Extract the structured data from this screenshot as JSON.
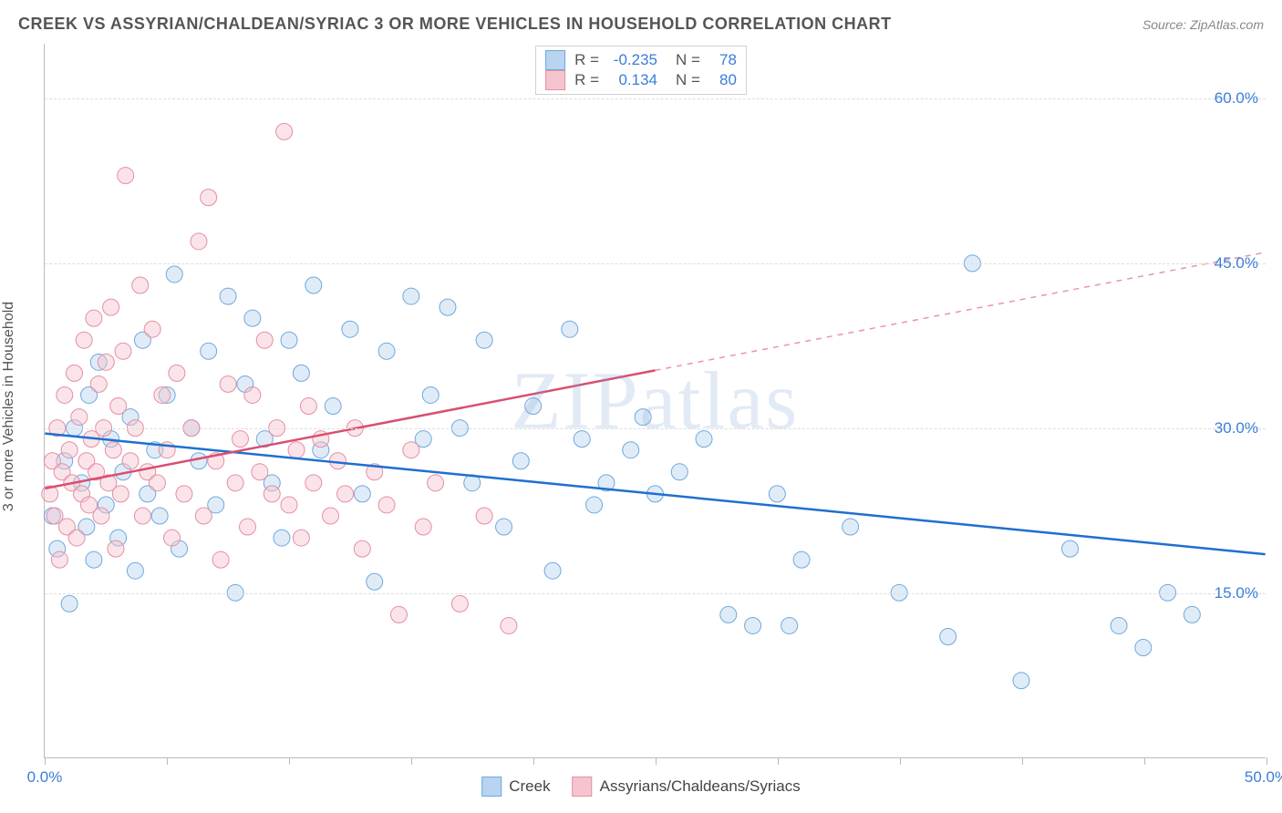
{
  "title": "CREEK VS ASSYRIAN/CHALDEAN/SYRIAC 3 OR MORE VEHICLES IN HOUSEHOLD CORRELATION CHART",
  "source": "Source: ZipAtlas.com",
  "ylabel": "3 or more Vehicles in Household",
  "watermark": "ZIPatlas",
  "chart": {
    "type": "scatter-with-regression",
    "background_color": "#ffffff",
    "grid_color": "#dddddd",
    "border_color": "#bbbbbb",
    "xlim": [
      0,
      50
    ],
    "ylim": [
      0,
      65
    ],
    "y_ticks": [
      15,
      30,
      45,
      60
    ],
    "y_tick_labels": [
      "15.0%",
      "30.0%",
      "45.0%",
      "60.0%"
    ],
    "x_ticks": [
      0,
      5,
      10,
      15,
      20,
      25,
      30,
      35,
      40,
      45,
      50
    ],
    "x_tick_labels": {
      "0": "0.0%",
      "50": "50.0%"
    },
    "y_label_color": "#3b7dd8",
    "x_label_color": "#3b7dd8",
    "marker_radius": 9,
    "marker_opacity": 0.45,
    "regression_line_width": 2.5,
    "series": [
      {
        "name": "Creek",
        "color_fill": "#b8d4f0",
        "color_stroke": "#6fa8dc",
        "line_color": "#1f6fd0",
        "R": -0.235,
        "N": 78,
        "regression": {
          "x1": 0,
          "y1": 29.5,
          "x2": 50,
          "y2": 18.5,
          "dashed_from_x": null
        },
        "points": [
          [
            0.3,
            22
          ],
          [
            0.5,
            19
          ],
          [
            0.8,
            27
          ],
          [
            1.0,
            14
          ],
          [
            1.2,
            30
          ],
          [
            1.5,
            25
          ],
          [
            1.7,
            21
          ],
          [
            1.8,
            33
          ],
          [
            2.0,
            18
          ],
          [
            2.2,
            36
          ],
          [
            2.5,
            23
          ],
          [
            2.7,
            29
          ],
          [
            3.0,
            20
          ],
          [
            3.2,
            26
          ],
          [
            3.5,
            31
          ],
          [
            3.7,
            17
          ],
          [
            4.0,
            38
          ],
          [
            4.2,
            24
          ],
          [
            4.5,
            28
          ],
          [
            4.7,
            22
          ],
          [
            5.0,
            33
          ],
          [
            5.3,
            44
          ],
          [
            5.5,
            19
          ],
          [
            6.0,
            30
          ],
          [
            6.3,
            27
          ],
          [
            6.7,
            37
          ],
          [
            7.0,
            23
          ],
          [
            7.5,
            42
          ],
          [
            7.8,
            15
          ],
          [
            8.2,
            34
          ],
          [
            8.5,
            40
          ],
          [
            9.0,
            29
          ],
          [
            9.3,
            25
          ],
          [
            9.7,
            20
          ],
          [
            10.0,
            38
          ],
          [
            10.5,
            35
          ],
          [
            11.0,
            43
          ],
          [
            11.3,
            28
          ],
          [
            11.8,
            32
          ],
          [
            12.5,
            39
          ],
          [
            13.0,
            24
          ],
          [
            13.5,
            16
          ],
          [
            14.0,
            37
          ],
          [
            15.0,
            42
          ],
          [
            15.5,
            29
          ],
          [
            15.8,
            33
          ],
          [
            16.5,
            41
          ],
          [
            17.0,
            30
          ],
          [
            17.5,
            25
          ],
          [
            18.0,
            38
          ],
          [
            18.8,
            21
          ],
          [
            19.5,
            27
          ],
          [
            20.0,
            32
          ],
          [
            20.8,
            17
          ],
          [
            21.5,
            39
          ],
          [
            22.0,
            29
          ],
          [
            22.5,
            23
          ],
          [
            23.0,
            25
          ],
          [
            24.0,
            28
          ],
          [
            24.5,
            31
          ],
          [
            25.0,
            24
          ],
          [
            26.0,
            26
          ],
          [
            27.0,
            29
          ],
          [
            28.0,
            13
          ],
          [
            29.0,
            12
          ],
          [
            30.0,
            24
          ],
          [
            30.5,
            12
          ],
          [
            31.0,
            18
          ],
          [
            33.0,
            21
          ],
          [
            35.0,
            15
          ],
          [
            37.0,
            11
          ],
          [
            38.0,
            45
          ],
          [
            40.0,
            7
          ],
          [
            42.0,
            19
          ],
          [
            44.0,
            12
          ],
          [
            45.0,
            10
          ],
          [
            46.0,
            15
          ],
          [
            47.0,
            13
          ]
        ]
      },
      {
        "name": "Assyrians/Chaldeans/Syriacs",
        "color_fill": "#f6c4cf",
        "color_stroke": "#e38fa3",
        "line_color": "#d94f70",
        "R": 0.134,
        "N": 80,
        "regression": {
          "x1": 0,
          "y1": 24.5,
          "x2": 50,
          "y2": 46,
          "dashed_from_x": 25
        },
        "points": [
          [
            0.2,
            24
          ],
          [
            0.3,
            27
          ],
          [
            0.4,
            22
          ],
          [
            0.5,
            30
          ],
          [
            0.6,
            18
          ],
          [
            0.7,
            26
          ],
          [
            0.8,
            33
          ],
          [
            0.9,
            21
          ],
          [
            1.0,
            28
          ],
          [
            1.1,
            25
          ],
          [
            1.2,
            35
          ],
          [
            1.3,
            20
          ],
          [
            1.4,
            31
          ],
          [
            1.5,
            24
          ],
          [
            1.6,
            38
          ],
          [
            1.7,
            27
          ],
          [
            1.8,
            23
          ],
          [
            1.9,
            29
          ],
          [
            2.0,
            40
          ],
          [
            2.1,
            26
          ],
          [
            2.2,
            34
          ],
          [
            2.3,
            22
          ],
          [
            2.4,
            30
          ],
          [
            2.5,
            36
          ],
          [
            2.6,
            25
          ],
          [
            2.7,
            41
          ],
          [
            2.8,
            28
          ],
          [
            2.9,
            19
          ],
          [
            3.0,
            32
          ],
          [
            3.1,
            24
          ],
          [
            3.2,
            37
          ],
          [
            3.3,
            53
          ],
          [
            3.5,
            27
          ],
          [
            3.7,
            30
          ],
          [
            3.9,
            43
          ],
          [
            4.0,
            22
          ],
          [
            4.2,
            26
          ],
          [
            4.4,
            39
          ],
          [
            4.6,
            25
          ],
          [
            4.8,
            33
          ],
          [
            5.0,
            28
          ],
          [
            5.2,
            20
          ],
          [
            5.4,
            35
          ],
          [
            5.7,
            24
          ],
          [
            6.0,
            30
          ],
          [
            6.3,
            47
          ],
          [
            6.5,
            22
          ],
          [
            6.7,
            51
          ],
          [
            7.0,
            27
          ],
          [
            7.2,
            18
          ],
          [
            7.5,
            34
          ],
          [
            7.8,
            25
          ],
          [
            8.0,
            29
          ],
          [
            8.3,
            21
          ],
          [
            8.5,
            33
          ],
          [
            8.8,
            26
          ],
          [
            9.0,
            38
          ],
          [
            9.3,
            24
          ],
          [
            9.5,
            30
          ],
          [
            9.8,
            57
          ],
          [
            10.0,
            23
          ],
          [
            10.3,
            28
          ],
          [
            10.5,
            20
          ],
          [
            10.8,
            32
          ],
          [
            11.0,
            25
          ],
          [
            11.3,
            29
          ],
          [
            11.7,
            22
          ],
          [
            12.0,
            27
          ],
          [
            12.3,
            24
          ],
          [
            12.7,
            30
          ],
          [
            13.0,
            19
          ],
          [
            13.5,
            26
          ],
          [
            14.0,
            23
          ],
          [
            14.5,
            13
          ],
          [
            15.0,
            28
          ],
          [
            15.5,
            21
          ],
          [
            16.0,
            25
          ],
          [
            17.0,
            14
          ],
          [
            18.0,
            22
          ],
          [
            19.0,
            12
          ]
        ]
      }
    ]
  },
  "stats_labels": {
    "R": "R =",
    "N": "N ="
  },
  "legend_labels": [
    "Creek",
    "Assyrians/Chaldeans/Syriacs"
  ]
}
